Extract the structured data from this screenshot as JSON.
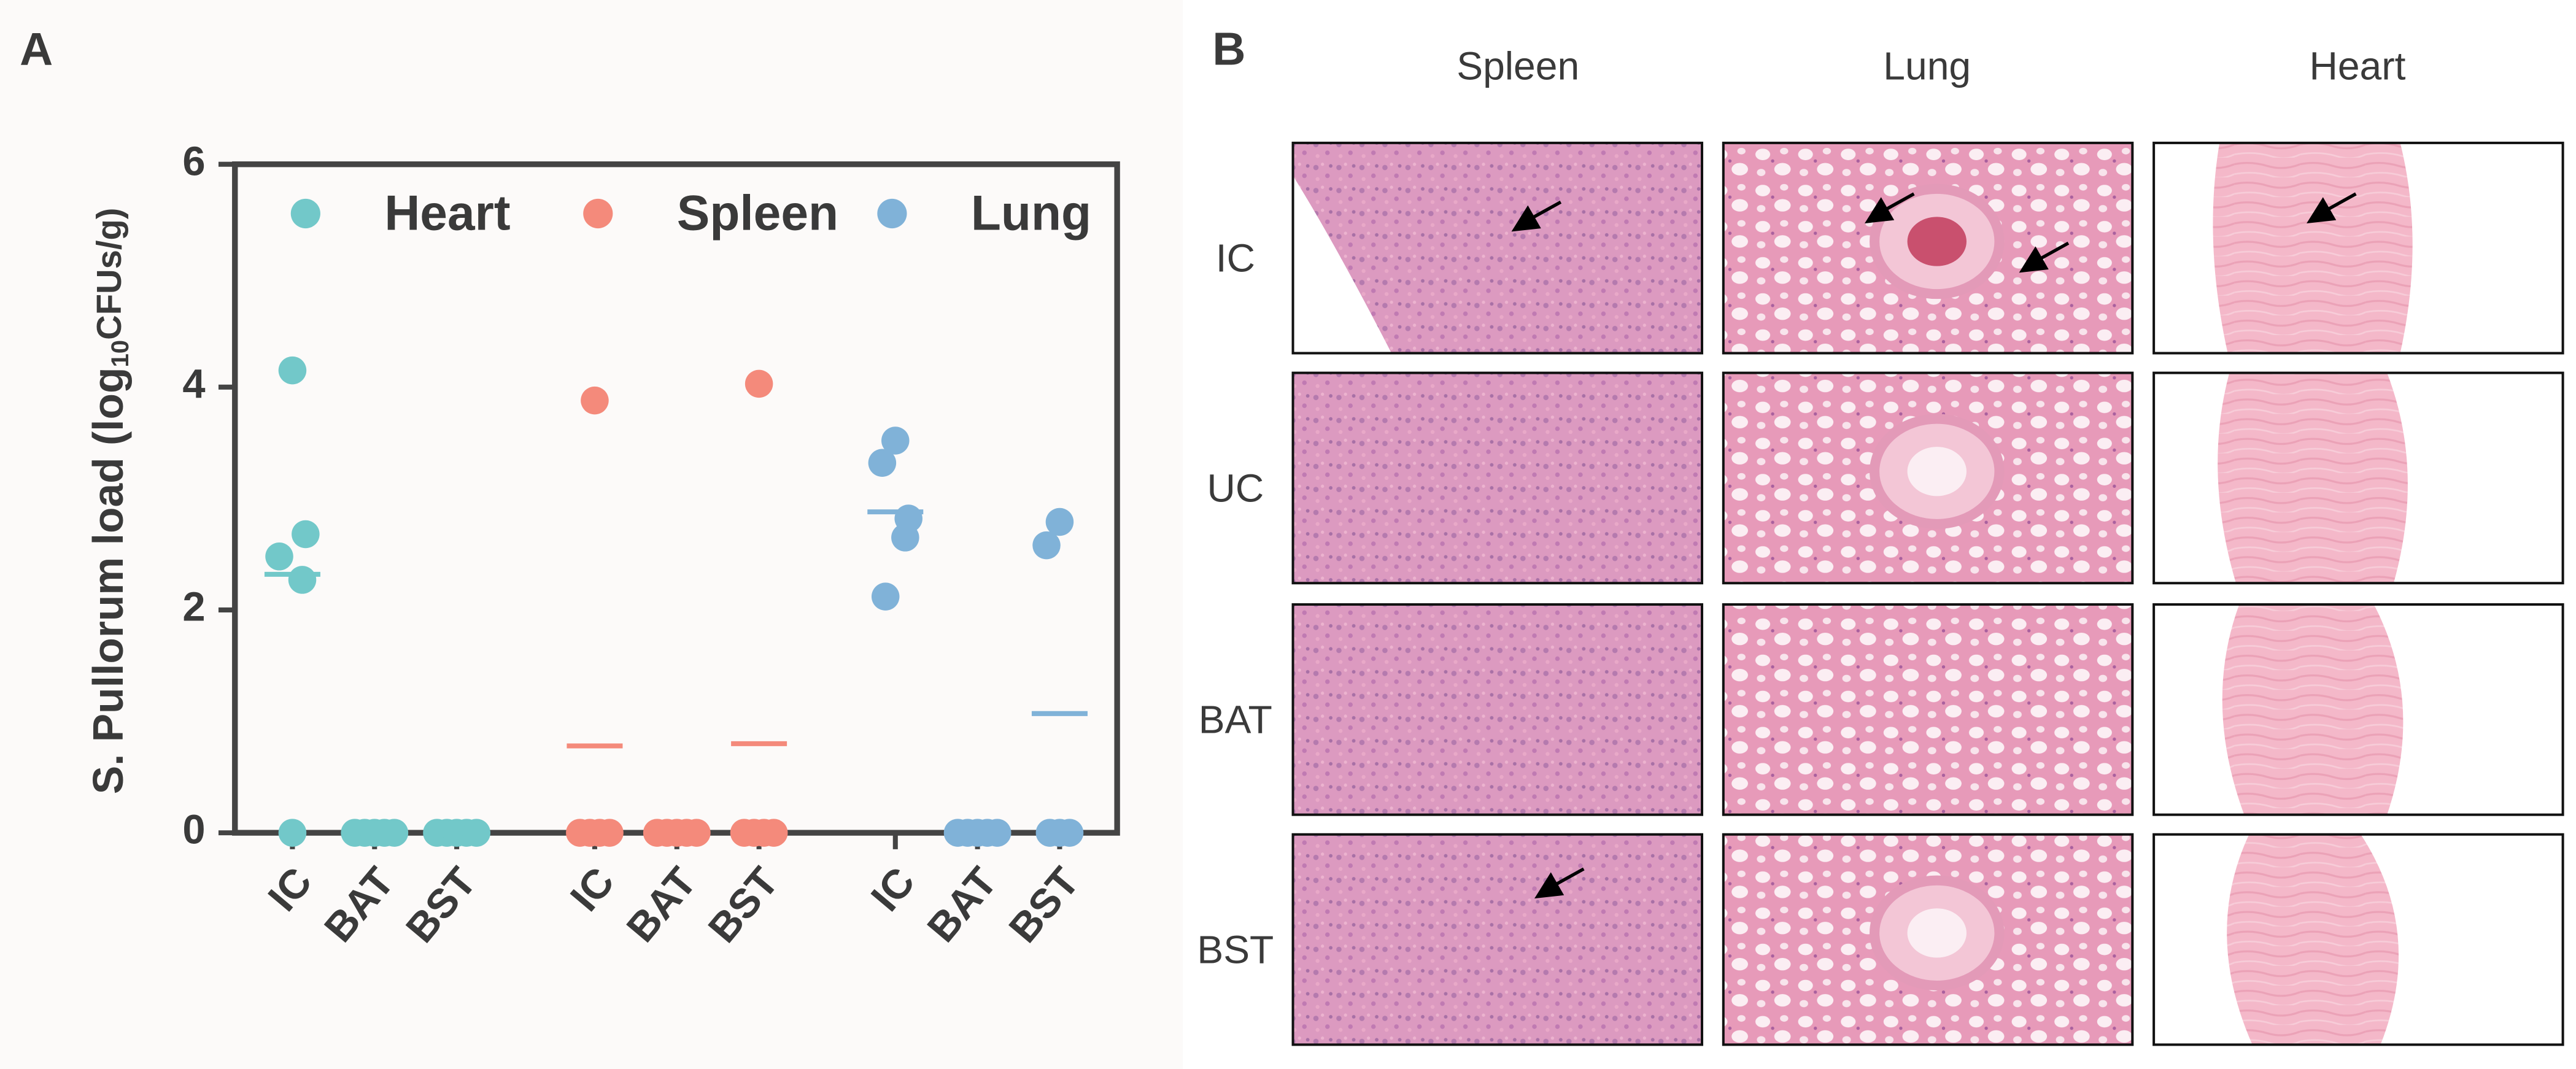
{
  "chart_data": {
    "type": "strip",
    "panel_label": "A",
    "y_label": [
      "S. Pullorum load (log",
      "10",
      "CFUs/g)"
    ],
    "categories": [
      "IC",
      "BAT",
      "BST"
    ],
    "ylim": [
      0,
      6
    ],
    "yticks": [
      0,
      2,
      4,
      6
    ],
    "series": [
      {
        "name": "Heart",
        "color": "#72c8c9",
        "values": [
          [
            4.15,
            2.48,
            2.68,
            2.27,
            0
          ],
          [
            0,
            0,
            0,
            0,
            0
          ],
          [
            0,
            0,
            0,
            0,
            0
          ]
        ],
        "means": [
          2.32,
          0,
          0
        ]
      },
      {
        "name": "Spleen",
        "color": "#f48a7b",
        "values": [
          [
            3.88,
            0,
            0,
            0,
            0
          ],
          [
            0,
            0,
            0,
            0,
            0
          ],
          [
            4.03,
            0,
            0,
            0,
            0
          ]
        ],
        "means": [
          0.78,
          0,
          0.8
        ]
      },
      {
        "name": "Lung",
        "color": "#80b2d8",
        "values": [
          [
            3.52,
            3.32,
            2.82,
            2.65,
            2.12
          ],
          [
            0,
            0,
            0,
            0,
            0
          ],
          [
            2.79,
            2.58,
            0,
            0,
            0
          ]
        ],
        "means": [
          2.88,
          0,
          1.07
        ]
      }
    ]
  },
  "panel_b": {
    "label": "B",
    "columns": [
      "Spleen",
      "Lung",
      "Heart"
    ],
    "rows": [
      "IC",
      "UC",
      "BAT",
      "BST"
    ]
  }
}
